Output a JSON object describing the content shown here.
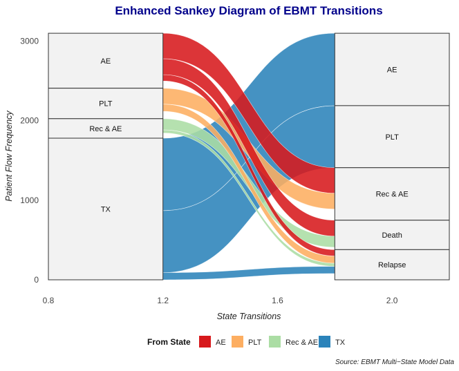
{
  "chart_data": {
    "type": "sankey",
    "title": "Enhanced Sankey Diagram of EBMT Transitions",
    "xlabel": "State Transitions",
    "ylabel": "Patient Flow Frequency",
    "caption": "Source: EBMT Multi−State Model Data",
    "xlim": [
      0.8,
      2.2
    ],
    "ylim": [
      0,
      3100
    ],
    "x_ticks": [
      {
        "value": 0.8,
        "label": "0.8"
      },
      {
        "value": 1.2,
        "label": "1.2"
      },
      {
        "value": 1.6,
        "label": "1.6"
      },
      {
        "value": 2.0,
        "label": "2.0"
      }
    ],
    "y_ticks": [
      {
        "value": 0,
        "label": "0"
      },
      {
        "value": 1000,
        "label": "1000"
      },
      {
        "value": 2000,
        "label": "2000"
      },
      {
        "value": 3000,
        "label": "3000"
      }
    ],
    "axis_positions": {
      "left": 1.0,
      "right": 2.0
    },
    "left_strata": [
      {
        "name": "AE",
        "label": "AE",
        "count": 691
      },
      {
        "name": "PLT",
        "label": "PLT",
        "count": 383
      },
      {
        "name": "Rec_AE",
        "label": "Rec & AE",
        "count": 245
      },
      {
        "name": "TX",
        "label": "TX",
        "count": 1780
      }
    ],
    "right_strata": [
      {
        "name": "AE",
        "label": "AE",
        "count": 910
      },
      {
        "name": "PLT",
        "label": "PLT",
        "count": 780
      },
      {
        "name": "Rec_AE",
        "label": "Rec & AE",
        "count": 660
      },
      {
        "name": "Death",
        "label": "Death",
        "count": 370
      },
      {
        "name": "Relapse",
        "label": "Relapse",
        "count": 379
      }
    ],
    "flows": [
      {
        "from": "TX",
        "to": "AE",
        "value": 910
      },
      {
        "from": "TX",
        "to": "PLT",
        "value": 780
      },
      {
        "from": "AE",
        "to": "Rec_AE",
        "value": 320
      },
      {
        "from": "PLT",
        "to": "Rec_AE",
        "value": 200
      },
      {
        "from": "AE",
        "to": "Death",
        "value": 200
      },
      {
        "from": "Rec_AE",
        "to": "Death",
        "value": 140
      },
      {
        "from": "AE",
        "to": "Relapse",
        "value": 80
      },
      {
        "from": "PLT",
        "to": "Relapse",
        "value": 90
      },
      {
        "from": "Rec_AE",
        "to": "Relapse",
        "value": 40
      },
      {
        "from": "TX",
        "to": "Relapse",
        "value": 90
      }
    ],
    "legend": {
      "title": "From State",
      "position": "bottom",
      "entries": [
        {
          "key": "AE",
          "label": "AE",
          "color": "#d7191c"
        },
        {
          "key": "PLT",
          "label": "PLT",
          "color": "#fdae61"
        },
        {
          "key": "Rec_AE",
          "label": "Rec & AE",
          "color": "#abdda4"
        },
        {
          "key": "TX",
          "label": "TX",
          "color": "#2b83ba"
        }
      ]
    },
    "stratum_fill": "#f2f2f2",
    "grid": false
  }
}
